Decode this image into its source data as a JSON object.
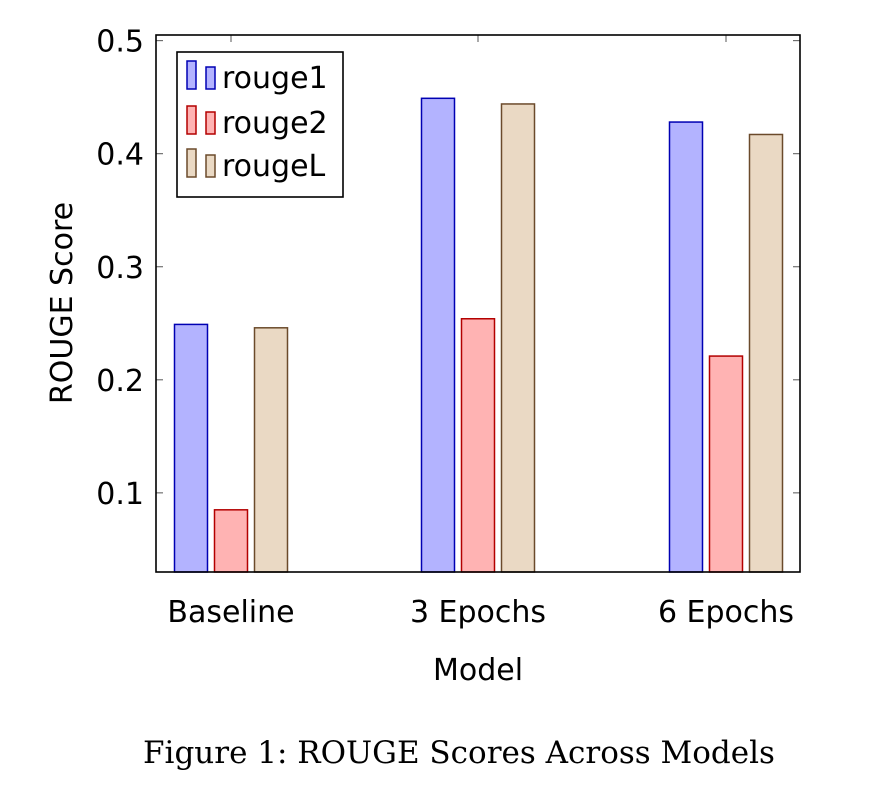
{
  "chart_data": {
    "type": "bar",
    "title": "",
    "xlabel": "Model",
    "ylabel": "ROUGE Score",
    "categories": [
      "Baseline",
      "3 Epochs",
      "6 Epochs"
    ],
    "series": [
      {
        "name": "rouge1",
        "values": [
          0.249,
          0.449,
          0.428
        ],
        "fill": "#b3b3ff",
        "stroke": "#0000b3"
      },
      {
        "name": "rouge2",
        "values": [
          0.085,
          0.254,
          0.221
        ],
        "fill": "#ffb3b3",
        "stroke": "#b30000"
      },
      {
        "name": "rougeL",
        "values": [
          0.246,
          0.444,
          0.417
        ],
        "fill": "#ead9c4",
        "stroke": "#6b4a2b"
      }
    ],
    "ylim": [
      0.03,
      0.505
    ],
    "yticks": [
      0.1,
      0.2,
      0.3,
      0.4,
      0.5
    ],
    "ytick_labels": [
      "0.1",
      "0.2",
      "0.3",
      "0.4",
      "0.5"
    ],
    "legend_position": "top-left",
    "grid": false
  },
  "caption": "Figure 1: ROUGE Scores Across Models"
}
